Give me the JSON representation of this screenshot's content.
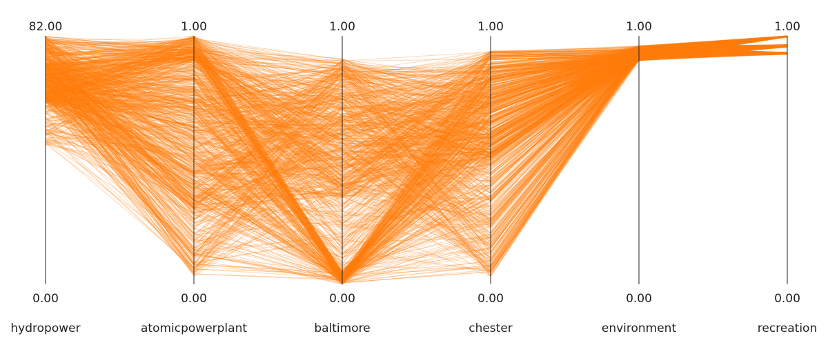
{
  "chart_data": {
    "type": "parallel_coordinates",
    "axes": [
      {
        "name": "hydropower",
        "max_label": "82.00",
        "min_label": "0.00",
        "range": [
          0,
          82
        ]
      },
      {
        "name": "atomicpowerplant",
        "max_label": "1.00",
        "min_label": "0.00",
        "range": [
          0,
          1
        ]
      },
      {
        "name": "baltimore",
        "max_label": "1.00",
        "min_label": "0.00",
        "range": [
          0,
          1
        ]
      },
      {
        "name": "chester",
        "max_label": "1.00",
        "min_label": "0.00",
        "range": [
          0,
          1
        ]
      },
      {
        "name": "environment",
        "max_label": "1.00",
        "min_label": "0.00",
        "range": [
          0,
          1
        ]
      },
      {
        "name": "recreation",
        "max_label": "1.00",
        "min_label": "0.00",
        "range": [
          0,
          1
        ]
      }
    ],
    "line_color": "#ff7f0e",
    "line_opacity": 0.3,
    "n_lines": 900,
    "approx_value_ranges": {
      "hydropower": [
        45,
        82
      ],
      "atomicpowerplant": [
        0.03,
        1.0
      ],
      "baltimore": [
        0.0,
        0.91
      ],
      "chester": [
        0.02,
        0.94
      ],
      "environment": [
        0.9,
        0.96
      ],
      "recreation": [
        0.92,
        1.0
      ]
    },
    "title": "",
    "grid": false
  }
}
